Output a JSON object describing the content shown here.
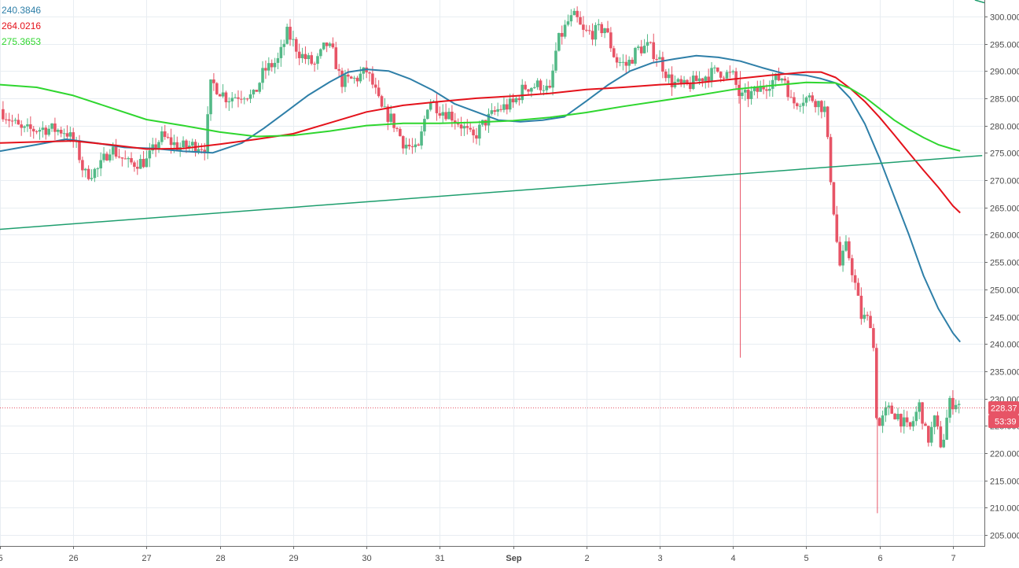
{
  "legend": [
    {
      "value": "240.3846",
      "color": "#2e7fa8"
    },
    {
      "value": "264.0216",
      "color": "#e4121b"
    },
    {
      "value": "275.3653",
      "color": "#2fd62f"
    }
  ],
  "price_label": {
    "value": "228.37",
    "color": "#e75466"
  },
  "countdown_label": {
    "value": "53:39",
    "color": "#e75466"
  },
  "chart_data": {
    "type": "candlestick",
    "y_ticks": [
      "205.000",
      "210.000",
      "215.000",
      "220.000",
      "225.000",
      "230.000",
      "235.000",
      "240.000",
      "245.000",
      "250.000",
      "255.000",
      "260.000",
      "265.000",
      "270.000",
      "275.000",
      "280.000",
      "285.000",
      "290.000",
      "295.000",
      "300.000"
    ],
    "x_ticks": [
      {
        "label": "5",
        "day": 25
      },
      {
        "label": "26",
        "day": 26
      },
      {
        "label": "27",
        "day": 27
      },
      {
        "label": "28",
        "day": 28
      },
      {
        "label": "29",
        "day": 29
      },
      {
        "label": "30",
        "day": 30
      },
      {
        "label": "31",
        "day": 31
      },
      {
        "label": "Sep",
        "day": 32,
        "bold": true
      },
      {
        "label": "2",
        "day": 33
      },
      {
        "label": "3",
        "day": 34
      },
      {
        "label": "4",
        "day": 35
      },
      {
        "label": "5",
        "day": 36
      },
      {
        "label": "6",
        "day": 37
      },
      {
        "label": "7",
        "day": 38
      }
    ],
    "ylim": [
      203,
      303
    ],
    "xlim": [
      25.0,
      38.43
    ],
    "current_price": 228.37,
    "up_color": "#53b987",
    "down_color": "#e75466",
    "candle_keypoints": [
      [
        25.0,
        283
      ],
      [
        25.3,
        279
      ],
      [
        25.6,
        279.5
      ],
      [
        25.9,
        279
      ],
      [
        26.05,
        276
      ],
      [
        26.15,
        271
      ],
      [
        26.35,
        272
      ],
      [
        26.5,
        276
      ],
      [
        26.75,
        273
      ],
      [
        27.0,
        273.5
      ],
      [
        27.2,
        278
      ],
      [
        27.45,
        276
      ],
      [
        27.7,
        276.5
      ],
      [
        27.8,
        276
      ],
      [
        27.88,
        288
      ],
      [
        28.1,
        285
      ],
      [
        28.35,
        286
      ],
      [
        28.45,
        285
      ],
      [
        28.6,
        290
      ],
      [
        28.8,
        292
      ],
      [
        28.92,
        297
      ],
      [
        29.1,
        293
      ],
      [
        29.3,
        291
      ],
      [
        29.45,
        295
      ],
      [
        29.55,
        293
      ],
      [
        29.65,
        288
      ],
      [
        29.85,
        288.5
      ],
      [
        30.0,
        290
      ],
      [
        30.1,
        287
      ],
      [
        30.2,
        283
      ],
      [
        30.35,
        281
      ],
      [
        30.5,
        277
      ],
      [
        30.7,
        275
      ],
      [
        30.85,
        285
      ],
      [
        31.0,
        283
      ],
      [
        31.15,
        282
      ],
      [
        31.3,
        280
      ],
      [
        31.45,
        277.5
      ],
      [
        31.6,
        280.5
      ],
      [
        31.8,
        283
      ],
      [
        32.0,
        284
      ],
      [
        32.15,
        287
      ],
      [
        32.4,
        287.5
      ],
      [
        32.5,
        286
      ],
      [
        32.6,
        295
      ],
      [
        32.75,
        299
      ],
      [
        32.85,
        300
      ],
      [
        32.95,
        297
      ],
      [
        33.1,
        297
      ],
      [
        33.25,
        298
      ],
      [
        33.4,
        292
      ],
      [
        33.55,
        291
      ],
      [
        33.7,
        294
      ],
      [
        33.85,
        294.5
      ],
      [
        34.0,
        292
      ],
      [
        34.15,
        288
      ],
      [
        34.35,
        287
      ],
      [
        34.6,
        289
      ],
      [
        34.8,
        290
      ],
      [
        35.0,
        289
      ],
      [
        35.1,
        285
      ],
      [
        35.3,
        286
      ],
      [
        35.5,
        288
      ],
      [
        35.7,
        289
      ],
      [
        35.8,
        284
      ],
      [
        35.95,
        285
      ],
      [
        36.1,
        285
      ],
      [
        36.25,
        283
      ],
      [
        36.35,
        268
      ],
      [
        36.45,
        254
      ],
      [
        36.55,
        258
      ],
      [
        36.65,
        252
      ],
      [
        36.75,
        245
      ],
      [
        36.9,
        244
      ],
      [
        36.97,
        224
      ],
      [
        37.1,
        228
      ],
      [
        37.25,
        227
      ],
      [
        37.4,
        224
      ],
      [
        37.55,
        229
      ],
      [
        37.65,
        222
      ],
      [
        37.75,
        226
      ],
      [
        37.85,
        221
      ],
      [
        37.95,
        229
      ],
      [
        38.05,
        229.5
      ],
      [
        38.12,
        228.4
      ]
    ],
    "candle_spikes": [
      {
        "day": 35.1,
        "low": 237.5,
        "high": 290
      },
      {
        "day": 36.97,
        "low": 209,
        "high": 233
      }
    ],
    "series": [
      {
        "name": "MA",
        "color": "#2e7fa8",
        "x": [
          25.0,
          25.5,
          25.9,
          26.3,
          26.7,
          27.1,
          27.5,
          27.9,
          28.3,
          28.6,
          28.9,
          29.2,
          29.5,
          29.75,
          30.0,
          30.3,
          30.6,
          30.9,
          31.2,
          31.5,
          31.8,
          32.1,
          32.4,
          32.7,
          33.0,
          33.3,
          33.6,
          33.9,
          34.2,
          34.5,
          34.8,
          35.1,
          35.4,
          35.7,
          36.0,
          36.2,
          36.4,
          36.6,
          36.8,
          37.0,
          37.2,
          37.4,
          37.6,
          37.8,
          38.0,
          38.1
        ],
        "y": [
          275.3,
          276.5,
          277.5,
          276.8,
          276.0,
          275.8,
          275.3,
          275.0,
          276.8,
          279.5,
          282.5,
          285.5,
          288.0,
          289.8,
          290.3,
          290.0,
          288.5,
          286.5,
          284.0,
          282.5,
          281.0,
          280.7,
          281.0,
          281.6,
          284.5,
          287.5,
          290.0,
          291.5,
          292.2,
          292.8,
          292.5,
          291.8,
          290.6,
          289.5,
          289.2,
          288.6,
          287.8,
          285.0,
          280.3,
          274.0,
          267.0,
          260.0,
          252.5,
          246.5,
          242.0,
          240.3846
        ]
      },
      {
        "name": "MA",
        "color": "#e4121b",
        "x": [
          25.0,
          25.5,
          26.0,
          26.5,
          27.0,
          27.5,
          28.0,
          28.5,
          29.0,
          29.5,
          30.0,
          30.5,
          31.0,
          31.5,
          32.0,
          32.5,
          33.0,
          33.5,
          34.0,
          34.5,
          35.0,
          35.5,
          36.0,
          36.2,
          36.4,
          36.6,
          36.8,
          37.0,
          37.2,
          37.4,
          37.6,
          37.8,
          38.0,
          38.1
        ],
        "y": [
          276.8,
          277.0,
          277.2,
          276.5,
          275.7,
          275.8,
          276.6,
          277.5,
          278.5,
          280.5,
          282.5,
          283.7,
          284.4,
          285.0,
          285.4,
          285.9,
          286.6,
          287.0,
          287.5,
          287.8,
          288.5,
          289.2,
          289.8,
          289.8,
          288.8,
          286.8,
          284.4,
          281.5,
          278.3,
          275.0,
          271.8,
          268.7,
          265.3,
          264.0216
        ]
      },
      {
        "name": "MA",
        "color": "#2fd62f",
        "x": [
          25.0,
          25.5,
          26.0,
          26.5,
          27.0,
          27.5,
          28.0,
          28.5,
          29.0,
          29.5,
          30.0,
          30.5,
          31.0,
          31.5,
          32.0,
          32.5,
          33.0,
          33.5,
          34.0,
          34.5,
          35.0,
          35.5,
          36.0,
          36.4,
          36.6,
          36.8,
          37.0,
          37.2,
          37.4,
          37.6,
          37.8,
          38.0,
          38.1
        ],
        "y": [
          287.5,
          287.0,
          285.5,
          283.3,
          281.1,
          280.0,
          278.8,
          278.0,
          278.2,
          279.0,
          280.0,
          280.4,
          280.4,
          280.6,
          280.9,
          281.5,
          282.4,
          283.5,
          284.5,
          285.5,
          286.6,
          287.3,
          287.9,
          287.8,
          286.8,
          285.2,
          283.1,
          281.0,
          279.3,
          277.8,
          276.5,
          275.7,
          275.3653
        ]
      },
      {
        "name": "trend line",
        "color": "#1e9e6e",
        "x": [
          25.0,
          38.4
        ],
        "y": [
          261.0,
          274.5
        ]
      },
      {
        "name": "trend line",
        "color": "#1e9e6e",
        "x": [
          38.3,
          38.43
        ],
        "y": [
          303.0,
          302.5
        ]
      }
    ]
  }
}
